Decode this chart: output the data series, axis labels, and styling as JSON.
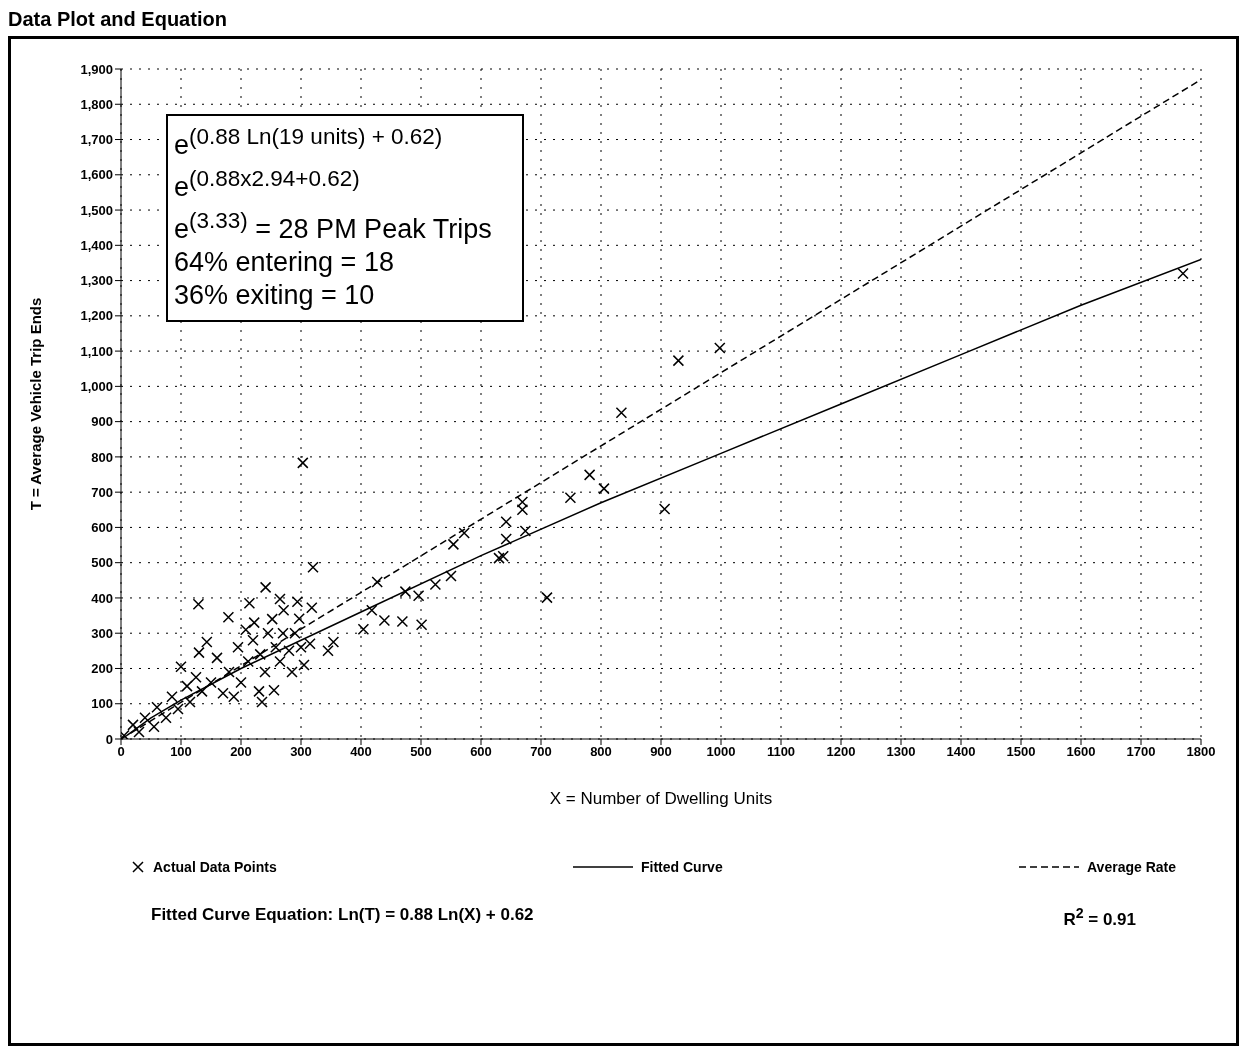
{
  "chart_data": {
    "type": "scatter",
    "title": "Data Plot and Equation",
    "xlabel": "X = Number of Dwelling Units",
    "ylabel": "T = Average Vehicle Trip Ends",
    "xlim": [
      0,
      1800
    ],
    "xticks": [
      0,
      100,
      200,
      300,
      400,
      500,
      600,
      700,
      800,
      900,
      1000,
      1100,
      1200,
      1300,
      1400,
      1500,
      1600,
      1700,
      1800
    ],
    "ylim": [
      0,
      1900
    ],
    "yticks": [
      0,
      100,
      200,
      300,
      400,
      500,
      600,
      700,
      800,
      900,
      {
        "value": 1000,
        "label": "1,000"
      },
      {
        "value": 1100,
        "label": "1,100"
      },
      {
        "value": 1200,
        "label": "1,200"
      },
      {
        "value": 1300,
        "label": "1,300"
      },
      {
        "value": 1400,
        "label": "1,400"
      },
      {
        "value": 1500,
        "label": "1,500"
      },
      {
        "value": 1600,
        "label": "1,600"
      },
      {
        "value": 1700,
        "label": "1,700"
      },
      {
        "value": 1800,
        "label": "1,800"
      },
      {
        "value": 1900,
        "label": "1,900"
      }
    ],
    "grid": true,
    "legend": "bottom",
    "series": [
      {
        "name": "Actual Data Points",
        "type": "scatter",
        "marker": "cross",
        "color": "#000000",
        "x": [
          5,
          20,
          30,
          40,
          55,
          60,
          75,
          85,
          95,
          100,
          110,
          115,
          125,
          135,
          150,
          160,
          170,
          180,
          188,
          195,
          200,
          208,
          212,
          220,
          222,
          230,
          232,
          235,
          240,
          245,
          252,
          255,
          258,
          265,
          270,
          280,
          285,
          290,
          300,
          305,
          315,
          129,
          241,
          214,
          179,
          265,
          294,
          318,
          271,
          297,
          143,
          130,
          303,
          320,
          354,
          345,
          404,
          418,
          427,
          439,
          469,
          501,
          474,
          496,
          524,
          550,
          572,
          554,
          637,
          642,
          642,
          669,
          669,
          674,
          630,
          710,
          749,
          805,
          781,
          906,
          834,
          929,
          998,
          1770
        ],
        "values": [
          10,
          40,
          20,
          60,
          35,
          90,
          60,
          120,
          85,
          205,
          150,
          105,
          175,
          135,
          160,
          230,
          130,
          190,
          120,
          260,
          160,
          310,
          220,
          280,
          330,
          135,
          240,
          105,
          190,
          300,
          340,
          138,
          260,
          220,
          300,
          250,
          190,
          300,
          260,
          210,
          270,
          382,
          430,
          385,
          345,
          397,
          389,
          372,
          365,
          341,
          275,
          245,
          783,
          487,
          275,
          250,
          311,
          365,
          445,
          336,
          333,
          324,
          418,
          406,
          438,
          462,
          584,
          552,
          518,
          567,
          616,
          672,
          650,
          590,
          513,
          401,
          684,
          710,
          749,
          652,
          925,
          1073,
          1109,
          1320
        ]
      },
      {
        "name": "Fitted Curve",
        "type": "line",
        "line_style": "solid",
        "marker": "none",
        "color": "#000000",
        "x": [
          10,
          50,
          100,
          200,
          400,
          600,
          800,
          1000,
          1200,
          1400,
          1600,
          1800
        ],
        "values": [
          10,
          60,
          110,
          200,
          360,
          520,
          670,
          810,
          950,
          1090,
          1230,
          1360
        ]
      },
      {
        "name": "Average Rate",
        "type": "line",
        "line_style": "dashed",
        "marker": "none",
        "color": "#000000",
        "x": [
          0,
          1800
        ],
        "values": [
          0,
          1870
        ]
      }
    ],
    "annotations": [
      "e$^{(0.88 Ln(19 units) + 0.62)}$",
      "e$^{(0.88x2.94+0.62)}$",
      "e$^{(3.33)}$ = 28 PM Peak Trips",
      "64% entering = 18",
      "36% exiting = 10",
      "Fitted Curve Equation:  Ln(T) = 0.88 Ln(X) + 0.62",
      "R$^{2}$ = 0.91"
    ]
  }
}
